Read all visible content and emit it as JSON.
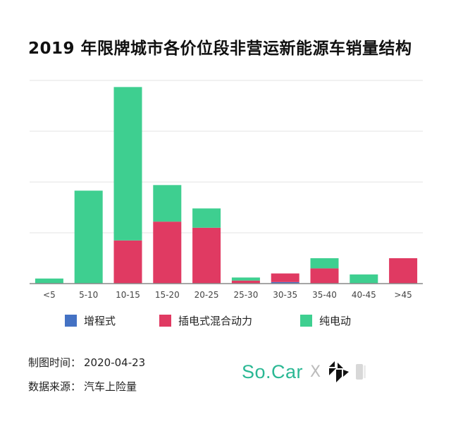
{
  "title": "2019 年限牌城市各价位段非营运新能源车销量结构",
  "chart_data": {
    "type": "bar",
    "stacked": true,
    "categories": [
      "<5",
      "5-10",
      "10-15",
      "15-20",
      "20-25",
      "25-30",
      "30-35",
      "35-40",
      "40-45",
      ">45"
    ],
    "series": [
      {
        "name": "增程式",
        "color": "#4472c4",
        "values": [
          0,
          0,
          0,
          0,
          0,
          0,
          0.3,
          0,
          0,
          0
        ]
      },
      {
        "name": "插电式混合动力",
        "color": "#e03a62",
        "values": [
          0,
          0,
          8.5,
          12.2,
          11,
          0.6,
          1.7,
          3,
          0,
          5
        ]
      },
      {
        "name": "纯电动",
        "color": "#3ecf90",
        "values": [
          1,
          18.3,
          30.2,
          7.2,
          3.8,
          0.6,
          0,
          2,
          1.8,
          0
        ]
      }
    ],
    "ylim": [
      0,
      40
    ],
    "y_gridlines": [
      10,
      20,
      30,
      40
    ],
    "y_ticks_shown": false,
    "grid": true,
    "legend_position": "bottom"
  },
  "legend": [
    {
      "label": "增程式",
      "color": "#4472c4"
    },
    {
      "label": "插电式混合动力",
      "color": "#e03a62"
    },
    {
      "label": "纯电动",
      "color": "#3ecf90"
    }
  ],
  "footer": {
    "date_label": "制图时间：",
    "date_value": "2020-04-23",
    "source_label": "数据来源：",
    "source_value": "汽车上险量"
  },
  "brand": {
    "socar": "So.Car",
    "separator": "X"
  }
}
